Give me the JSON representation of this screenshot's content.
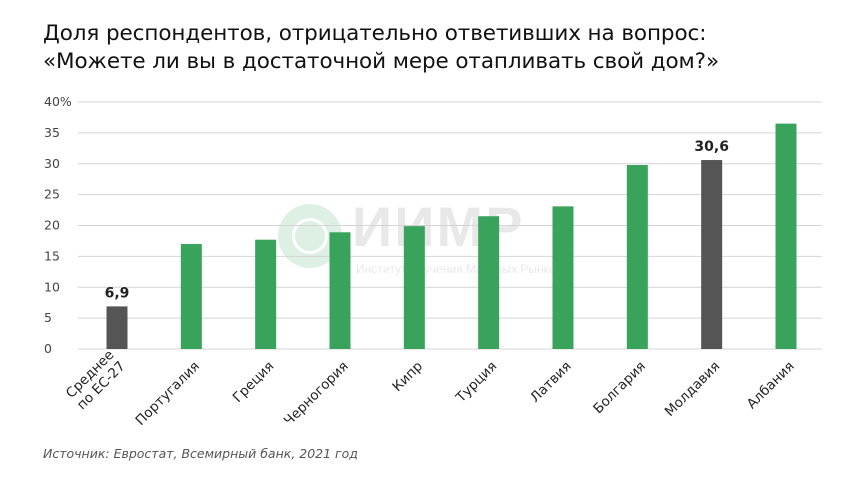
{
  "header": {
    "title_line1": "Доля респондентов, отрицательно ответивших на вопрос:",
    "title_line2": "«Можете ли вы в достаточной мере отапливать свой дом?»"
  },
  "watermark": {
    "name": "ИИМР",
    "subtitle": "Институт Изучения Мировых Рынков"
  },
  "source": "Источник: Евростат, Всемирный банк, 2021 год",
  "colors": {
    "green": "#3aa35b",
    "gray": "#555555",
    "grid": "#d4d4d4"
  },
  "chart_data": {
    "type": "bar",
    "title": "Доля респондентов, отрицательно ответивших на вопрос: «Можете ли вы в достаточной мере отапливать свой дом?»",
    "categories": [
      [
        "Среднее",
        "по ЕС-27"
      ],
      [
        "Португалия"
      ],
      [
        "Греция"
      ],
      [
        "Черногория"
      ],
      [
        "Кипр"
      ],
      [
        "Турция"
      ],
      [
        "Латвия"
      ],
      [
        "Болгария"
      ],
      [
        "Молдавия"
      ],
      [
        "Албания"
      ]
    ],
    "values": [
      6.9,
      17.0,
      17.7,
      18.9,
      19.9,
      21.5,
      23.1,
      29.8,
      30.6,
      36.5
    ],
    "bar_colors": [
      "gray",
      "green",
      "green",
      "green",
      "green",
      "green",
      "green",
      "green",
      "gray",
      "green"
    ],
    "data_labels": [
      "6,9",
      "",
      "",
      "",
      "",
      "",
      "",
      "",
      "30,6",
      ""
    ],
    "y_ticks": [
      "0",
      "5",
      "10",
      "15",
      "20",
      "25",
      "30",
      "35",
      "40%"
    ],
    "ylim": [
      0,
      40
    ],
    "grid": true,
    "legend": "none"
  }
}
